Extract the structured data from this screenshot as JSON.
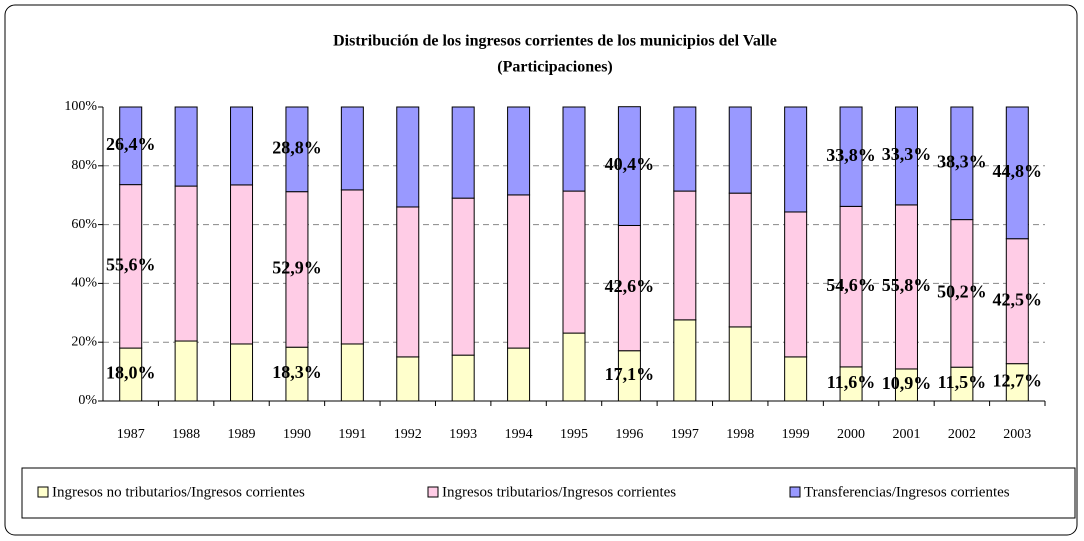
{
  "chart_data": {
    "type": "stacked_bar",
    "title": "Distribución de los ingresos corrientes de los municipios del Valle",
    "subtitle": "(Participaciones)",
    "categories": [
      "1987",
      "1988",
      "1989",
      "1990",
      "1991",
      "1992",
      "1993",
      "1994",
      "1995",
      "1996",
      "1997",
      "1998",
      "1999",
      "2000",
      "2001",
      "2002",
      "2003"
    ],
    "series": [
      {
        "name": "Ingresos no tributarios/Ingresos corrientes",
        "color": "#ffffcc",
        "values": [
          18.0,
          20.4,
          19.4,
          18.3,
          19.4,
          15.0,
          15.6,
          18.0,
          23.1,
          17.1,
          27.6,
          25.2,
          15.0,
          11.6,
          10.9,
          11.5,
          12.7
        ],
        "value_labels": [
          "18,0%",
          null,
          null,
          "18,3%",
          null,
          null,
          null,
          null,
          null,
          "17,1%",
          null,
          null,
          null,
          "11,6%",
          "10,9%",
          "11,5%",
          "12,7%"
        ]
      },
      {
        "name": "Ingresos tributarios/Ingresos corrientes",
        "color": "#ffcce6",
        "values": [
          55.6,
          52.7,
          54.1,
          52.9,
          52.4,
          51.0,
          53.4,
          52.1,
          48.3,
          42.6,
          43.8,
          45.5,
          49.3,
          54.6,
          55.8,
          50.2,
          42.5
        ],
        "value_labels": [
          "55,6%",
          null,
          null,
          "52,9%",
          null,
          null,
          null,
          null,
          null,
          "42,6%",
          null,
          null,
          null,
          "54,6%",
          "55,8%",
          "50,2%",
          "42,5%"
        ]
      },
      {
        "name": "Transferencias/Ingresos corrientes",
        "color": "#9999ff",
        "values": [
          26.4,
          26.9,
          26.5,
          28.8,
          28.2,
          34.0,
          31.0,
          29.9,
          28.6,
          40.4,
          28.6,
          29.3,
          35.7,
          33.8,
          33.3,
          38.3,
          44.8
        ],
        "value_labels": [
          "26,4%",
          null,
          null,
          "28,8%",
          null,
          null,
          null,
          null,
          null,
          "40,4%",
          null,
          null,
          null,
          "33,8%",
          "33,3%",
          "38,3%",
          "44,8%"
        ]
      }
    ],
    "ylim": [
      0,
      100
    ],
    "yticks": [
      {
        "value": 0,
        "label": "0%"
      },
      {
        "value": 20,
        "label": "20%"
      },
      {
        "value": 40,
        "label": "40%"
      },
      {
        "value": 60,
        "label": "60%"
      },
      {
        "value": 80,
        "label": "80%"
      },
      {
        "value": 100,
        "label": "100%"
      }
    ],
    "grid": true
  }
}
